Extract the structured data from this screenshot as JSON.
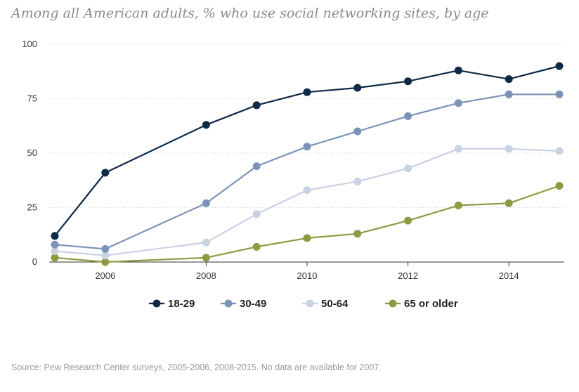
{
  "title": "Among all American adults, % who use social networking sites, by age",
  "source": "Source: Pew Research Center surveys, 2005-2006, 2008-2015. No data are available for 2007.",
  "chart_data": {
    "type": "line",
    "title": "Among all American adults, % who use social networking sites, by age",
    "xlabel": "",
    "ylabel": "",
    "xlim": [
      2005,
      2015
    ],
    "ylim": [
      0,
      100
    ],
    "x_ticks": [
      2006,
      2008,
      2010,
      2012,
      2014
    ],
    "y_ticks": [
      0,
      25,
      50,
      75,
      100
    ],
    "grid": "horizontal dotted",
    "legend_position": "bottom",
    "x": [
      2005,
      2006,
      2008,
      2009,
      2010,
      2011,
      2012,
      2013,
      2014,
      2015
    ],
    "series": [
      {
        "name": "18-29",
        "color": "#0e2a47",
        "values": [
          12,
          41,
          63,
          72,
          78,
          80,
          83,
          88,
          84,
          90
        ]
      },
      {
        "name": "30-49",
        "color": "#7c93b8",
        "values": [
          8,
          6,
          27,
          44,
          53,
          60,
          67,
          73,
          77,
          77
        ]
      },
      {
        "name": "50-64",
        "color": "#c9d2e2",
        "values": [
          5,
          3,
          9,
          22,
          33,
          37,
          43,
          52,
          52,
          51
        ]
      },
      {
        "name": "65 or older",
        "color": "#8d9a41",
        "values": [
          2,
          0,
          2,
          7,
          11,
          13,
          19,
          26,
          27,
          35
        ]
      }
    ]
  }
}
